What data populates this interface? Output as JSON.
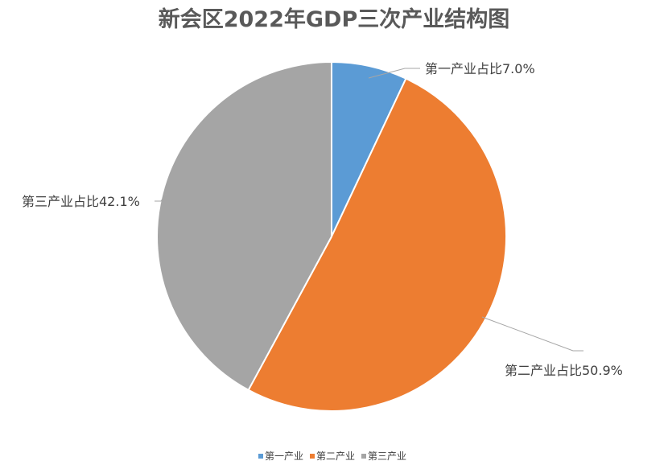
{
  "chart_data": {
    "type": "pie",
    "title": "新会区2022年GDP三次产业结构图",
    "categories": [
      "第一产业",
      "第二产业",
      "第三产业"
    ],
    "values": [
      7.0,
      50.9,
      42.1
    ],
    "unit": "%",
    "data_labels": [
      "第一产业占比7.0%",
      "第二产业占比50.9%",
      "第三产业占比42.1%"
    ],
    "colors": [
      "#5b9bd5",
      "#ed7d31",
      "#a5a5a5"
    ],
    "start_angle": "12 o'clock",
    "direction": "clockwise",
    "legend": "bottom"
  }
}
